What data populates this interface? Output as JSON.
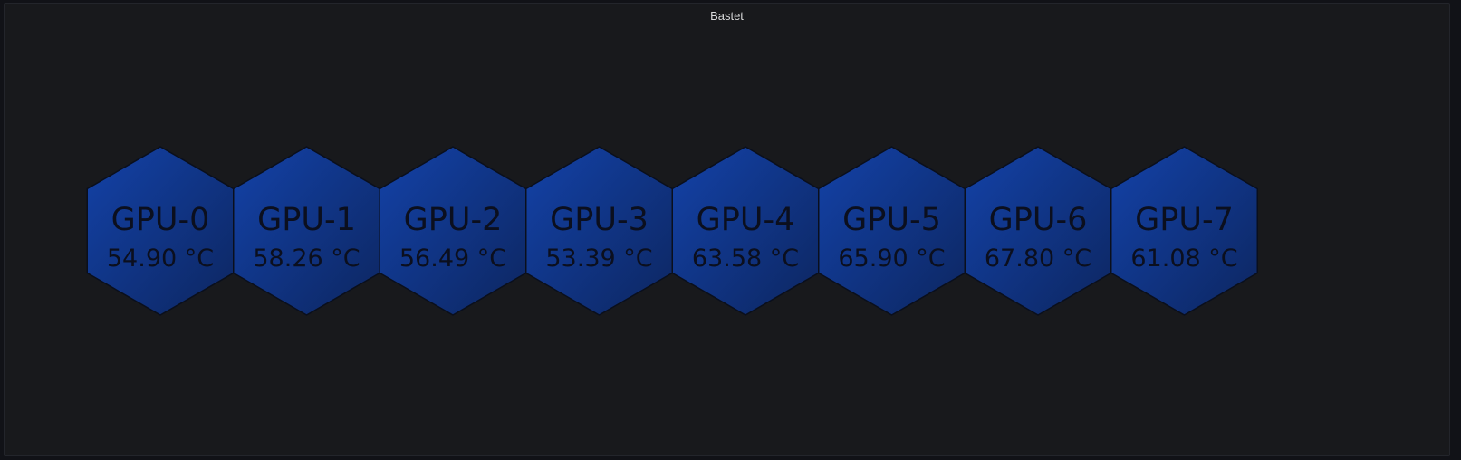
{
  "panel": {
    "title": "Bastet"
  },
  "colors": {
    "background": "#111217",
    "panel": "#18191c",
    "hex_light": "#1342a8",
    "hex_dark": "#0d2660",
    "hex_border": "#0a0f1c",
    "text": "#0b0f1e"
  },
  "gpus": [
    {
      "name": "GPU-0",
      "value": "54.90 °C"
    },
    {
      "name": "GPU-1",
      "value": "58.26 °C"
    },
    {
      "name": "GPU-2",
      "value": "56.49 °C"
    },
    {
      "name": "GPU-3",
      "value": "53.39 °C"
    },
    {
      "name": "GPU-4",
      "value": "63.58 °C"
    },
    {
      "name": "GPU-5",
      "value": "65.90 °C"
    },
    {
      "name": "GPU-6",
      "value": "67.80 °C"
    },
    {
      "name": "GPU-7",
      "value": "61.08 °C"
    }
  ]
}
